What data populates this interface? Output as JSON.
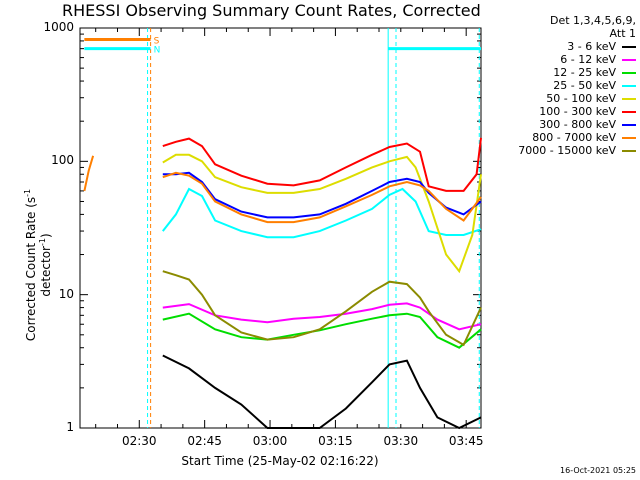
{
  "chart_data": {
    "type": "line",
    "title": "RHESSI Observing Summary Count Rates, Corrected",
    "ylabel_prefix": "Corrected Count Rate (s",
    "ylabel_sup": "-1",
    "ylabel_mid": " detector",
    "ylabel_sup2": "-1",
    "ylabel_suffix": ")",
    "xlabel": "Start Time (25-May-02 02:16:22)",
    "yscale": "log",
    "ylim": [
      1,
      1000
    ],
    "xlim_min": [
      0,
      92
    ],
    "y_ticks": [
      "1",
      "10",
      "100",
      "1000"
    ],
    "x_ticks": [
      {
        "label": "02:30",
        "min": 13.6
      },
      {
        "label": "02:45",
        "min": 28.6
      },
      {
        "label": "03:00",
        "min": 43.6
      },
      {
        "label": "03:15",
        "min": 58.6
      },
      {
        "label": "03:30",
        "min": 73.6
      },
      {
        "label": "03:45",
        "min": 88.6
      }
    ],
    "legend_header": [
      "Det 1,3,4,5,6,9,",
      "Att 1"
    ],
    "series": [
      {
        "name": "3 - 6 keV",
        "color": "#000000",
        "points": [
          [
            19,
            3.5
          ],
          [
            25,
            2.8
          ],
          [
            31,
            2.0
          ],
          [
            37,
            1.5
          ],
          [
            43,
            1.0
          ],
          [
            49,
            1.0
          ],
          [
            55,
            1.0
          ],
          [
            61,
            1.4
          ],
          [
            67,
            2.2
          ],
          [
            71,
            3.0
          ],
          [
            75,
            3.2
          ],
          [
            78,
            2.0
          ],
          [
            82,
            1.2
          ],
          [
            87,
            1.0
          ],
          [
            92,
            1.2
          ]
        ]
      },
      {
        "name": "6 - 12 keV",
        "color": "#ff00ff",
        "points": [
          [
            19,
            8.0
          ],
          [
            25,
            8.5
          ],
          [
            31,
            7.0
          ],
          [
            37,
            6.5
          ],
          [
            43,
            6.2
          ],
          [
            49,
            6.6
          ],
          [
            55,
            6.8
          ],
          [
            61,
            7.2
          ],
          [
            67,
            7.8
          ],
          [
            71,
            8.4
          ],
          [
            75,
            8.6
          ],
          [
            78,
            8.0
          ],
          [
            82,
            6.5
          ],
          [
            87,
            5.5
          ],
          [
            92,
            6.0
          ]
        ]
      },
      {
        "name": "12 - 25 keV",
        "color": "#00dd00",
        "points": [
          [
            19,
            6.5
          ],
          [
            25,
            7.2
          ],
          [
            31,
            5.5
          ],
          [
            37,
            4.8
          ],
          [
            43,
            4.6
          ],
          [
            49,
            5.0
          ],
          [
            55,
            5.4
          ],
          [
            61,
            6.0
          ],
          [
            67,
            6.6
          ],
          [
            71,
            7.0
          ],
          [
            75,
            7.2
          ],
          [
            78,
            6.8
          ],
          [
            82,
            4.8
          ],
          [
            87,
            4.0
          ],
          [
            92,
            5.5
          ]
        ]
      },
      {
        "name": "25 - 50 keV",
        "color": "#00ffff",
        "points": [
          [
            19,
            30
          ],
          [
            22,
            40
          ],
          [
            25,
            62
          ],
          [
            28,
            55
          ],
          [
            31,
            36
          ],
          [
            37,
            30
          ],
          [
            43,
            27
          ],
          [
            49,
            27
          ],
          [
            55,
            30
          ],
          [
            61,
            36
          ],
          [
            67,
            44
          ],
          [
            71,
            56
          ],
          [
            74,
            62
          ],
          [
            77,
            50
          ],
          [
            80,
            30
          ],
          [
            84,
            28
          ],
          [
            88,
            28
          ],
          [
            92,
            31
          ]
        ]
      },
      {
        "name": "50 - 100 keV",
        "color": "#dddd00",
        "points": [
          [
            19,
            98
          ],
          [
            22,
            112
          ],
          [
            25,
            112
          ],
          [
            28,
            100
          ],
          [
            31,
            76
          ],
          [
            37,
            64
          ],
          [
            43,
            58
          ],
          [
            49,
            58
          ],
          [
            55,
            62
          ],
          [
            61,
            74
          ],
          [
            67,
            90
          ],
          [
            71,
            100
          ],
          [
            75,
            108
          ],
          [
            77,
            90
          ],
          [
            80,
            50
          ],
          [
            84,
            20
          ],
          [
            87,
            15
          ],
          [
            90,
            28
          ],
          [
            92,
            80
          ]
        ]
      },
      {
        "name": "100 - 300 keV",
        "color": "#ff0000",
        "points": [
          [
            19,
            130
          ],
          [
            22,
            140
          ],
          [
            25,
            148
          ],
          [
            28,
            130
          ],
          [
            31,
            95
          ],
          [
            37,
            78
          ],
          [
            43,
            68
          ],
          [
            49,
            66
          ],
          [
            55,
            72
          ],
          [
            61,
            90
          ],
          [
            67,
            112
          ],
          [
            71,
            128
          ],
          [
            75,
            136
          ],
          [
            78,
            118
          ],
          [
            80,
            65
          ],
          [
            84,
            60
          ],
          [
            88,
            60
          ],
          [
            91,
            80
          ],
          [
            92,
            150
          ]
        ]
      },
      {
        "name": "300 - 800 keV",
        "color": "#0000ff",
        "points": [
          [
            19,
            80
          ],
          [
            22,
            80
          ],
          [
            25,
            82
          ],
          [
            28,
            70
          ],
          [
            31,
            52
          ],
          [
            37,
            42
          ],
          [
            43,
            38
          ],
          [
            49,
            38
          ],
          [
            55,
            40
          ],
          [
            61,
            48
          ],
          [
            67,
            60
          ],
          [
            71,
            70
          ],
          [
            75,
            74
          ],
          [
            78,
            70
          ],
          [
            80,
            58
          ],
          [
            84,
            45
          ],
          [
            88,
            40
          ],
          [
            92,
            50
          ]
        ]
      },
      {
        "name": "800 - 7000 keV",
        "color": "#ff7f00",
        "points": [
          [
            19,
            76
          ],
          [
            22,
            82
          ],
          [
            25,
            78
          ],
          [
            28,
            68
          ],
          [
            31,
            50
          ],
          [
            37,
            40
          ],
          [
            43,
            35
          ],
          [
            49,
            35
          ],
          [
            55,
            38
          ],
          [
            61,
            46
          ],
          [
            67,
            56
          ],
          [
            71,
            65
          ],
          [
            75,
            70
          ],
          [
            78,
            66
          ],
          [
            80,
            60
          ],
          [
            84,
            44
          ],
          [
            88,
            36
          ],
          [
            92,
            54
          ]
        ]
      },
      {
        "name": "7000 - 15000 keV",
        "color": "#8b8b00",
        "points": [
          [
            19,
            15
          ],
          [
            22,
            14
          ],
          [
            25,
            13
          ],
          [
            28,
            10
          ],
          [
            31,
            7
          ],
          [
            37,
            5.2
          ],
          [
            43,
            4.6
          ],
          [
            49,
            4.8
          ],
          [
            55,
            5.5
          ],
          [
            61,
            7.5
          ],
          [
            67,
            10.5
          ],
          [
            71,
            12.5
          ],
          [
            75,
            12.0
          ],
          [
            78,
            9.5
          ],
          [
            80,
            7.5
          ],
          [
            84,
            5.0
          ],
          [
            88,
            4.2
          ],
          [
            92,
            8.0
          ]
        ]
      }
    ],
    "early_segment_color": "#ff7f00",
    "early_segment": [
      [
        1,
        60
      ],
      [
        2,
        85
      ],
      [
        3,
        110
      ]
    ],
    "flags": [
      {
        "label": "S",
        "color": "#ff7f00",
        "from_min": 1,
        "to_min": 16.2,
        "level": 820
      },
      {
        "label": "N",
        "color": "#00ffff",
        "from_min": 1,
        "to_min": 16.2,
        "level": 700
      },
      {
        "label": "",
        "color": "#00ffff",
        "from_min": 70.7,
        "to_min": 92,
        "level": 700
      }
    ],
    "vlines_solid": [
      {
        "min": 70.7,
        "color": "#00ffff"
      }
    ],
    "vlines_dashed": [
      {
        "min": 15.5,
        "color": "#00ffff"
      },
      {
        "min": 16.2,
        "color": "#ff7f00"
      },
      {
        "min": 72.5,
        "color": "#00ffff"
      },
      {
        "min": 91.6,
        "color": "#00ffff"
      }
    ],
    "grid": false,
    "legend_position": "right"
  },
  "footer_stamp": "16-Oct-2021 05:25"
}
